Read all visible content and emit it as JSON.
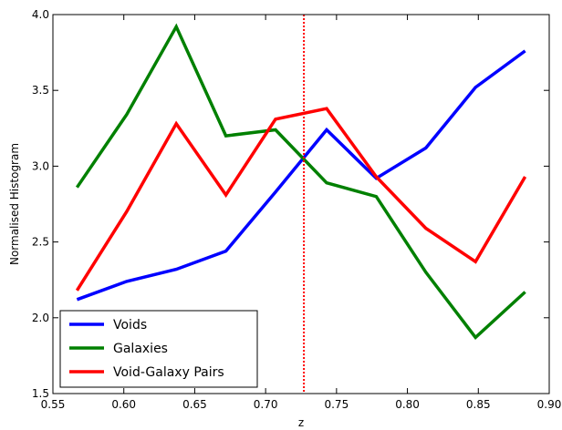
{
  "chart_data": {
    "type": "line",
    "title": "",
    "xlabel": "z",
    "ylabel": "Normalised Histogram",
    "xlim": [
      0.55,
      0.9
    ],
    "ylim": [
      1.5,
      4.0
    ],
    "xticks": [
      "0.55",
      "0.60",
      "0.65",
      "0.70",
      "0.75",
      "0.80",
      "0.85",
      "0.90"
    ],
    "yticks": [
      "1.5",
      "2.0",
      "2.5",
      "3.0",
      "3.5",
      "4.0"
    ],
    "grid": false,
    "legend_position": "lower-left",
    "x": [
      0.567,
      0.602,
      0.637,
      0.672,
      0.707,
      0.743,
      0.778,
      0.813,
      0.848,
      0.883
    ],
    "series": [
      {
        "name": "Voids",
        "color": "#0000ff",
        "values": [
          2.12,
          2.24,
          2.32,
          2.44,
          2.83,
          3.24,
          2.92,
          3.12,
          3.52,
          3.76
        ]
      },
      {
        "name": "Galaxies",
        "color": "#008000",
        "values": [
          2.86,
          3.34,
          3.92,
          3.2,
          3.24,
          2.89,
          2.8,
          2.3,
          1.87,
          2.17
        ]
      },
      {
        "name": "Void-Galaxy Pairs",
        "color": "#ff0000",
        "values": [
          2.18,
          2.7,
          3.28,
          2.81,
          3.31,
          3.38,
          2.93,
          2.59,
          2.37,
          2.93
        ]
      }
    ],
    "reference_line": {
      "x": 0.727,
      "color": "#ff0000",
      "style": "dotted"
    }
  }
}
